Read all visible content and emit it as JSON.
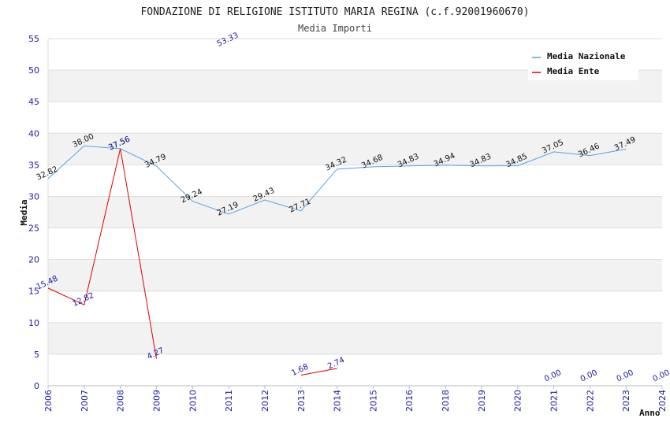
{
  "chart_data": {
    "type": "line",
    "title": "FONDAZIONE DI RELIGIONE ISTITUTO MARIA REGINA (c.f.92001960670)",
    "subtitle": "Media Importi",
    "xlabel": "Anno",
    "ylabel": "Media",
    "ylim": [
      0,
      55
    ],
    "yticks": [
      "0",
      "5",
      "10",
      "15",
      "20",
      "25",
      "30",
      "35",
      "40",
      "45",
      "50",
      "55"
    ],
    "categories": [
      "2006",
      "2007",
      "2008",
      "2009",
      "2010",
      "2011",
      "2012",
      "2013",
      "2014",
      "2015",
      "2016",
      "2018",
      "2019",
      "2020",
      "2021",
      "2022",
      "2023",
      "2024"
    ],
    "grid": "horizontal bands",
    "legend_position": "top-right",
    "series": [
      {
        "name": "Media Nazionale",
        "color": "#5aa0e6",
        "values": [
          32.82,
          38.0,
          37.56,
          34.79,
          29.24,
          27.19,
          29.43,
          27.71,
          34.32,
          34.68,
          34.83,
          34.94,
          34.83,
          34.85,
          37.05,
          36.46,
          37.49,
          null
        ],
        "labels": [
          "32.82",
          "38.00",
          "37.56",
          "34.79",
          "29.24",
          "27.19",
          "29.43",
          "27.71",
          "34.32",
          "34.68",
          "34.83",
          "34.94",
          "34.83",
          "34.85",
          "37.05",
          "36.46",
          "37.49",
          ""
        ]
      },
      {
        "name": "Media Ente",
        "color": "#e00000",
        "values": [
          15.48,
          12.82,
          37.56,
          4.27,
          null,
          53.33,
          null,
          1.68,
          2.74,
          null,
          null,
          null,
          null,
          null,
          0.0,
          0.0,
          0.0,
          0.0
        ],
        "labels": [
          "15.48",
          "12.82",
          "37.56",
          "4.27",
          "",
          "53.33",
          "",
          "1.68",
          "2.74",
          "",
          "",
          "",
          "",
          "",
          "0.00",
          "0.00",
          "0.00",
          "0.00"
        ]
      }
    ]
  }
}
